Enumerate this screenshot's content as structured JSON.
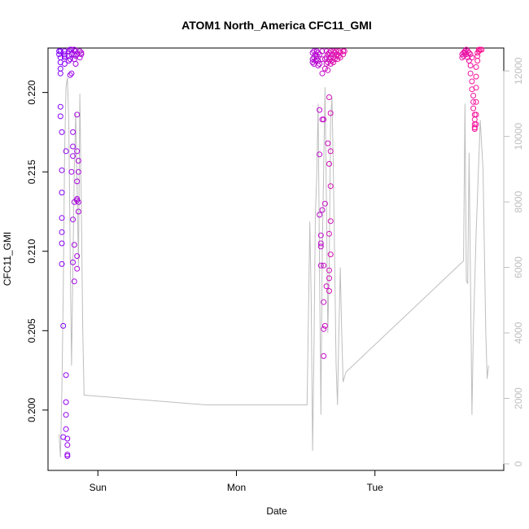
{
  "chart_data": {
    "type": "scatter",
    "title": "ATOM1 North_America CFC11_GMI",
    "xlabel": "Date",
    "ylabel": "CFC11_GMI",
    "x_ticks": [
      {
        "label": "Sun",
        "day": 1.0
      },
      {
        "label": "Mon",
        "day": 2.0
      },
      {
        "label": "Tue",
        "day": 3.0
      }
    ],
    "xlim": [
      0.64,
      3.93
    ],
    "ylim": [
      0.1962,
      0.2228
    ],
    "y_ticks": [
      0.2,
      0.205,
      0.21,
      0.215,
      0.22
    ],
    "y_tick_labels": [
      "0.200",
      "0.205",
      "0.210",
      "0.215",
      "0.220"
    ],
    "y2lim": [
      -200,
      12700
    ],
    "y2_ticks": [
      0,
      2000,
      4000,
      6000,
      8000,
      10000,
      12000
    ],
    "y2_tick_labels": [
      "0",
      "2000",
      "4000",
      "6000",
      "8000",
      "10000",
      "12000"
    ],
    "grid": false,
    "legend": "none",
    "series": [
      {
        "kind": "points",
        "color_gradient": [
          "#7f00ff",
          "#ff1493"
        ],
        "points": [
          [
            0.72,
            0.2226
          ],
          [
            0.72,
            0.2224
          ],
          [
            0.73,
            0.2226
          ],
          [
            0.73,
            0.2222
          ],
          [
            0.73,
            0.2219
          ],
          [
            0.73,
            0.2215
          ],
          [
            0.73,
            0.2212
          ],
          [
            0.73,
            0.2191
          ],
          [
            0.73,
            0.2185
          ],
          [
            0.74,
            0.2175
          ],
          [
            0.74,
            0.2151
          ],
          [
            0.74,
            0.2137
          ],
          [
            0.74,
            0.2121
          ],
          [
            0.74,
            0.2112
          ],
          [
            0.74,
            0.2105
          ],
          [
            0.74,
            0.2092
          ],
          [
            0.75,
            0.2053
          ],
          [
            0.75,
            0.1983
          ],
          [
            0.76,
            0.2226
          ],
          [
            0.76,
            0.2223
          ],
          [
            0.76,
            0.2222
          ],
          [
            0.76,
            0.2224
          ],
          [
            0.76,
            0.2218
          ],
          [
            0.77,
            0.2163
          ],
          [
            0.77,
            0.2022
          ],
          [
            0.77,
            0.2005
          ],
          [
            0.77,
            0.1997
          ],
          [
            0.77,
            0.1988
          ],
          [
            0.78,
            0.1982
          ],
          [
            0.78,
            0.1978
          ],
          [
            0.78,
            0.1972
          ],
          [
            0.78,
            0.1971
          ],
          [
            0.79,
            0.2226
          ],
          [
            0.79,
            0.2223
          ],
          [
            0.79,
            0.222
          ],
          [
            0.8,
            0.2227
          ],
          [
            0.8,
            0.2221
          ],
          [
            0.8,
            0.2211
          ],
          [
            0.81,
            0.2227
          ],
          [
            0.81,
            0.2224
          ],
          [
            0.81,
            0.2212
          ],
          [
            0.81,
            0.215
          ],
          [
            0.82,
            0.2175
          ],
          [
            0.82,
            0.2166
          ],
          [
            0.82,
            0.216
          ],
          [
            0.82,
            0.212
          ],
          [
            0.82,
            0.2093
          ],
          [
            0.83,
            0.2227
          ],
          [
            0.83,
            0.2224
          ],
          [
            0.83,
            0.2221
          ],
          [
            0.83,
            0.2131
          ],
          [
            0.83,
            0.2104
          ],
          [
            0.83,
            0.2081
          ],
          [
            0.84,
            0.2226
          ],
          [
            0.84,
            0.2223
          ],
          [
            0.84,
            0.2218
          ],
          [
            0.85,
            0.2224
          ],
          [
            0.85,
            0.2186
          ],
          [
            0.85,
            0.2163
          ],
          [
            0.85,
            0.2144
          ],
          [
            0.85,
            0.2133
          ],
          [
            0.85,
            0.2132
          ],
          [
            0.85,
            0.2097
          ],
          [
            0.85,
            0.2089
          ],
          [
            0.86,
            0.2157
          ],
          [
            0.86,
            0.215
          ],
          [
            0.86,
            0.2131
          ],
          [
            0.86,
            0.2125
          ],
          [
            0.87,
            0.2226
          ],
          [
            0.87,
            0.2222
          ],
          [
            0.88,
            0.2225
          ],
          [
            0.88,
            0.2224
          ],
          [
            2.55,
            0.2225
          ],
          [
            2.55,
            0.2221
          ],
          [
            2.55,
            0.2219
          ],
          [
            2.56,
            0.2226
          ],
          [
            2.56,
            0.2222
          ],
          [
            2.56,
            0.2218
          ],
          [
            2.57,
            0.2224
          ],
          [
            2.57,
            0.222
          ],
          [
            2.58,
            0.2226
          ],
          [
            2.58,
            0.2223
          ],
          [
            2.58,
            0.2221
          ],
          [
            2.59,
            0.2225
          ],
          [
            2.59,
            0.222
          ],
          [
            2.59,
            0.2217
          ],
          [
            2.6,
            0.2224
          ],
          [
            2.6,
            0.2218
          ],
          [
            2.6,
            0.2189
          ],
          [
            2.6,
            0.2161
          ],
          [
            2.6,
            0.2123
          ],
          [
            2.61,
            0.211
          ],
          [
            2.61,
            0.2105
          ],
          [
            2.61,
            0.2103
          ],
          [
            2.61,
            0.2091
          ],
          [
            2.62,
            0.2226
          ],
          [
            2.62,
            0.2221
          ],
          [
            2.62,
            0.2212
          ],
          [
            2.62,
            0.2183
          ],
          [
            2.62,
            0.2126
          ],
          [
            2.63,
            0.2183
          ],
          [
            2.63,
            0.2091
          ],
          [
            2.63,
            0.2068
          ],
          [
            2.63,
            0.2051
          ],
          [
            2.63,
            0.2034
          ],
          [
            2.64,
            0.2053
          ],
          [
            2.64,
            0.213
          ],
          [
            2.64,
            0.2221
          ],
          [
            2.64,
            0.2215
          ],
          [
            2.65,
            0.2226
          ],
          [
            2.65,
            0.2222
          ],
          [
            2.65,
            0.2218
          ],
          [
            2.65,
            0.2078
          ],
          [
            2.66,
            0.2168
          ],
          [
            2.66,
            0.2224
          ],
          [
            2.66,
            0.2219
          ],
          [
            2.66,
            0.2214
          ],
          [
            2.67,
            0.2225
          ],
          [
            2.67,
            0.2221
          ],
          [
            2.67,
            0.2197
          ],
          [
            2.67,
            0.2155
          ],
          [
            2.67,
            0.2111
          ],
          [
            2.67,
            0.2088
          ],
          [
            2.67,
            0.2083
          ],
          [
            2.67,
            0.2075
          ],
          [
            2.68,
            0.2226
          ],
          [
            2.68,
            0.2222
          ],
          [
            2.68,
            0.2218
          ],
          [
            2.68,
            0.2187
          ],
          [
            2.68,
            0.2163
          ],
          [
            2.68,
            0.2141
          ],
          [
            2.68,
            0.2119
          ],
          [
            2.68,
            0.2098
          ],
          [
            2.69,
            0.2224
          ],
          [
            2.69,
            0.222
          ],
          [
            2.7,
            0.2226
          ],
          [
            2.7,
            0.2222
          ],
          [
            2.7,
            0.2219
          ],
          [
            2.71,
            0.2225
          ],
          [
            2.71,
            0.2221
          ],
          [
            2.72,
            0.2226
          ],
          [
            2.72,
            0.2223
          ],
          [
            2.73,
            0.2224
          ],
          [
            2.73,
            0.2221
          ],
          [
            2.74,
            0.2226
          ],
          [
            2.74,
            0.2223
          ],
          [
            2.75,
            0.2225
          ],
          [
            2.75,
            0.2222
          ],
          [
            2.77,
            0.2226
          ],
          [
            2.77,
            0.2224
          ],
          [
            2.78,
            0.2226
          ],
          [
            3.63,
            0.2222
          ],
          [
            3.63,
            0.2224
          ],
          [
            3.64,
            0.2225
          ],
          [
            3.64,
            0.2223
          ],
          [
            3.65,
            0.2226
          ],
          [
            3.65,
            0.2225
          ],
          [
            3.66,
            0.2227
          ],
          [
            3.66,
            0.2224
          ],
          [
            3.67,
            0.2226
          ],
          [
            3.67,
            0.2222
          ],
          [
            3.68,
            0.2225
          ],
          [
            3.68,
            0.222
          ],
          [
            3.69,
            0.2224
          ],
          [
            3.69,
            0.2217
          ],
          [
            3.69,
            0.2212
          ],
          [
            3.7,
            0.2222
          ],
          [
            3.7,
            0.2207
          ],
          [
            3.7,
            0.2202
          ],
          [
            3.71,
            0.2198
          ],
          [
            3.71,
            0.2194
          ],
          [
            3.71,
            0.219
          ],
          [
            3.72,
            0.2186
          ],
          [
            3.72,
            0.2183
          ],
          [
            3.72,
            0.218
          ],
          [
            3.72,
            0.2178
          ],
          [
            3.72,
            0.2177
          ],
          [
            3.73,
            0.218
          ],
          [
            3.73,
            0.2186
          ],
          [
            3.73,
            0.2194
          ],
          [
            3.73,
            0.2203
          ],
          [
            3.73,
            0.221
          ],
          [
            3.73,
            0.2216
          ],
          [
            3.74,
            0.222
          ],
          [
            3.74,
            0.2223
          ],
          [
            3.74,
            0.2225
          ],
          [
            3.75,
            0.2226
          ],
          [
            3.75,
            0.2227
          ],
          [
            3.76,
            0.2227
          ],
          [
            3.77,
            0.2227
          ]
        ]
      },
      {
        "kind": "line",
        "axis": "right",
        "color": "#bebebe",
        "points": [
          [
            0.72,
            900
          ],
          [
            0.73,
            200
          ],
          [
            0.74,
            2200
          ],
          [
            0.75,
            5200
          ],
          [
            0.76,
            9500
          ],
          [
            0.77,
            11500
          ],
          [
            0.78,
            11800
          ],
          [
            0.79,
            10500
          ],
          [
            0.8,
            6500
          ],
          [
            0.81,
            3000
          ],
          [
            0.82,
            6000
          ],
          [
            0.83,
            9000
          ],
          [
            0.84,
            10700
          ],
          [
            0.85,
            8500
          ],
          [
            0.86,
            6000
          ],
          [
            0.87,
            11300
          ],
          [
            0.88,
            8000
          ],
          [
            0.89,
            4200
          ],
          [
            0.9,
            2100
          ],
          [
            1.78,
            1800
          ],
          [
            2.51,
            1800
          ],
          [
            2.53,
            7400
          ],
          [
            2.54,
            5000
          ],
          [
            2.55,
            400
          ],
          [
            2.56,
            3500
          ],
          [
            2.57,
            7600
          ],
          [
            2.58,
            8800
          ],
          [
            2.59,
            11000
          ],
          [
            2.6,
            6000
          ],
          [
            2.61,
            1500
          ],
          [
            2.62,
            6500
          ],
          [
            2.63,
            9000
          ],
          [
            2.64,
            11500
          ],
          [
            2.65,
            8000
          ],
          [
            2.66,
            4000
          ],
          [
            2.67,
            6000
          ],
          [
            2.68,
            10500
          ],
          [
            2.69,
            11200
          ],
          [
            2.7,
            9000
          ],
          [
            2.71,
            6000
          ],
          [
            2.72,
            3000
          ],
          [
            2.73,
            1800
          ],
          [
            2.74,
            4000
          ],
          [
            2.75,
            6000
          ],
          [
            2.76,
            4000
          ],
          [
            2.77,
            2500
          ],
          [
            2.79,
            2800
          ],
          [
            3.64,
            6200
          ],
          [
            3.65,
            11000
          ],
          [
            3.66,
            5600
          ],
          [
            3.67,
            5500
          ],
          [
            3.68,
            9500
          ],
          [
            3.7,
            1500
          ],
          [
            3.71,
            4000
          ],
          [
            3.73,
            7000
          ],
          [
            3.76,
            10500
          ],
          [
            3.78,
            9000
          ],
          [
            3.8,
            4000
          ],
          [
            3.81,
            2600
          ],
          [
            3.82,
            3000
          ]
        ]
      }
    ]
  }
}
